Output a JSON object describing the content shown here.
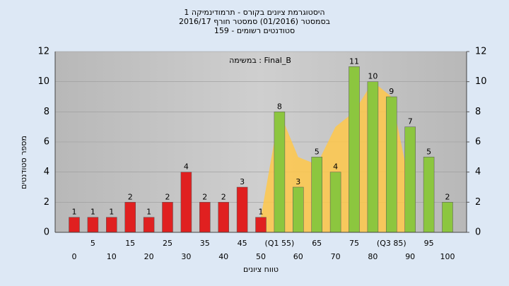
{
  "chart_data": {
    "type": "bar",
    "title": "היסטוגרמת ציונים בקורס - תרמודינמיקה 1",
    "subtitle": "בסמסטר  (01/2016)  סמסטר חורף  2016/17",
    "subtitle2": "סטודנטים רשומים - 159",
    "annotation": "במשימה : Final_B",
    "y_label": "מספר סטודנטים",
    "x_label": "טווח ציונים",
    "categories": [
      "0",
      "5",
      "10",
      "15",
      "20",
      "25",
      "30",
      "35",
      "40",
      "45",
      "50",
      "(Q1 55)",
      "60",
      "65",
      "70",
      "75",
      "80",
      "(Q3 85)",
      "90",
      "95",
      "100"
    ],
    "values": [
      1,
      1,
      1,
      2,
      1,
      2,
      4,
      2,
      2,
      3,
      1,
      8,
      3,
      5,
      4,
      11,
      10,
      9,
      7,
      5,
      2
    ],
    "colors": [
      "#e02020",
      "#e02020",
      "#e02020",
      "#e02020",
      "#e02020",
      "#e02020",
      "#e02020",
      "#e02020",
      "#e02020",
      "#e02020",
      "#e02020",
      "#8cc63f",
      "#8cc63f",
      "#8cc63f",
      "#8cc63f",
      "#8cc63f",
      "#8cc63f",
      "#8cc63f",
      "#8cc63f",
      "#8cc63f",
      "#8cc63f"
    ],
    "shade": {
      "color": "#ffc84a",
      "values": [
        null,
        null,
        null,
        null,
        null,
        null,
        null,
        null,
        null,
        null,
        1,
        8,
        5,
        4.5,
        7,
        8,
        10,
        9,
        3,
        null,
        null
      ]
    },
    "ylim": [
      0,
      12
    ],
    "yticks": [
      0,
      2,
      4,
      6,
      8,
      10,
      12
    ],
    "y2lim": [
      0,
      12
    ],
    "y2ticks": [
      0,
      2,
      4,
      6,
      8,
      10,
      12
    ],
    "grid": true
  }
}
